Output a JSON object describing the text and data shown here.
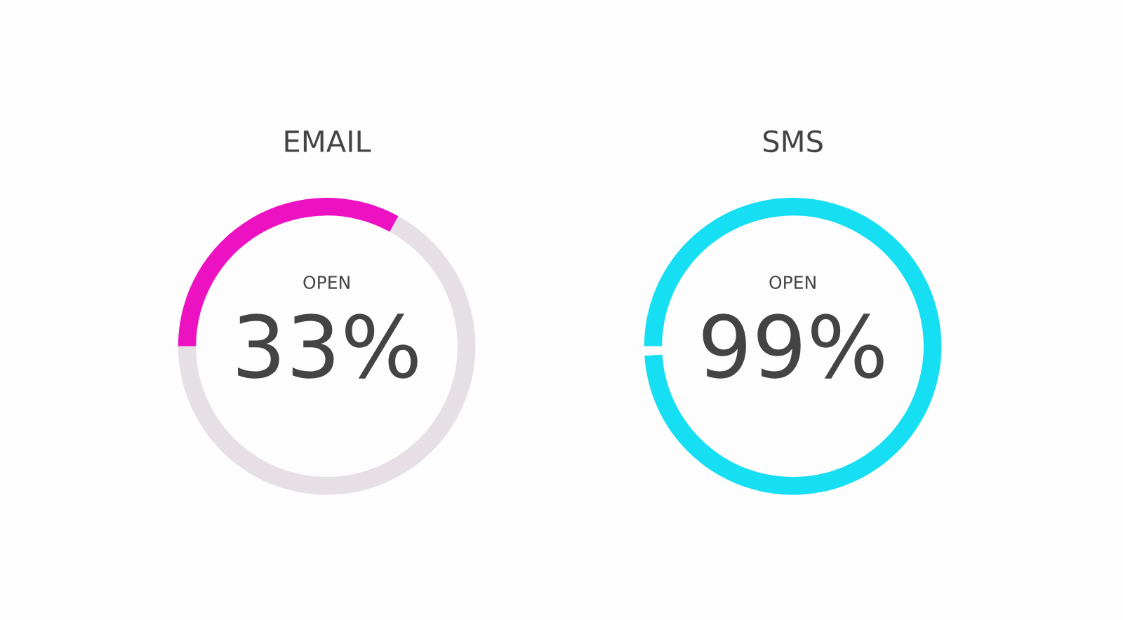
{
  "chart_data": [
    {
      "type": "donut",
      "title": "EMAIL",
      "categories": [
        "OPEN",
        null
      ],
      "values": [
        33,
        67
      ],
      "colors": [
        "#ec12c2",
        "#e6dfe6"
      ],
      "value_labels": [
        "33%",
        null
      ]
    },
    {
      "type": "donut",
      "title": "SMS",
      "categories": [
        "OPEN",
        null
      ],
      "values": [
        99,
        1
      ],
      "colors": [
        "#16def3",
        "#fcfcfc"
      ],
      "value_labels": [
        "99%",
        null
      ]
    }
  ]
}
